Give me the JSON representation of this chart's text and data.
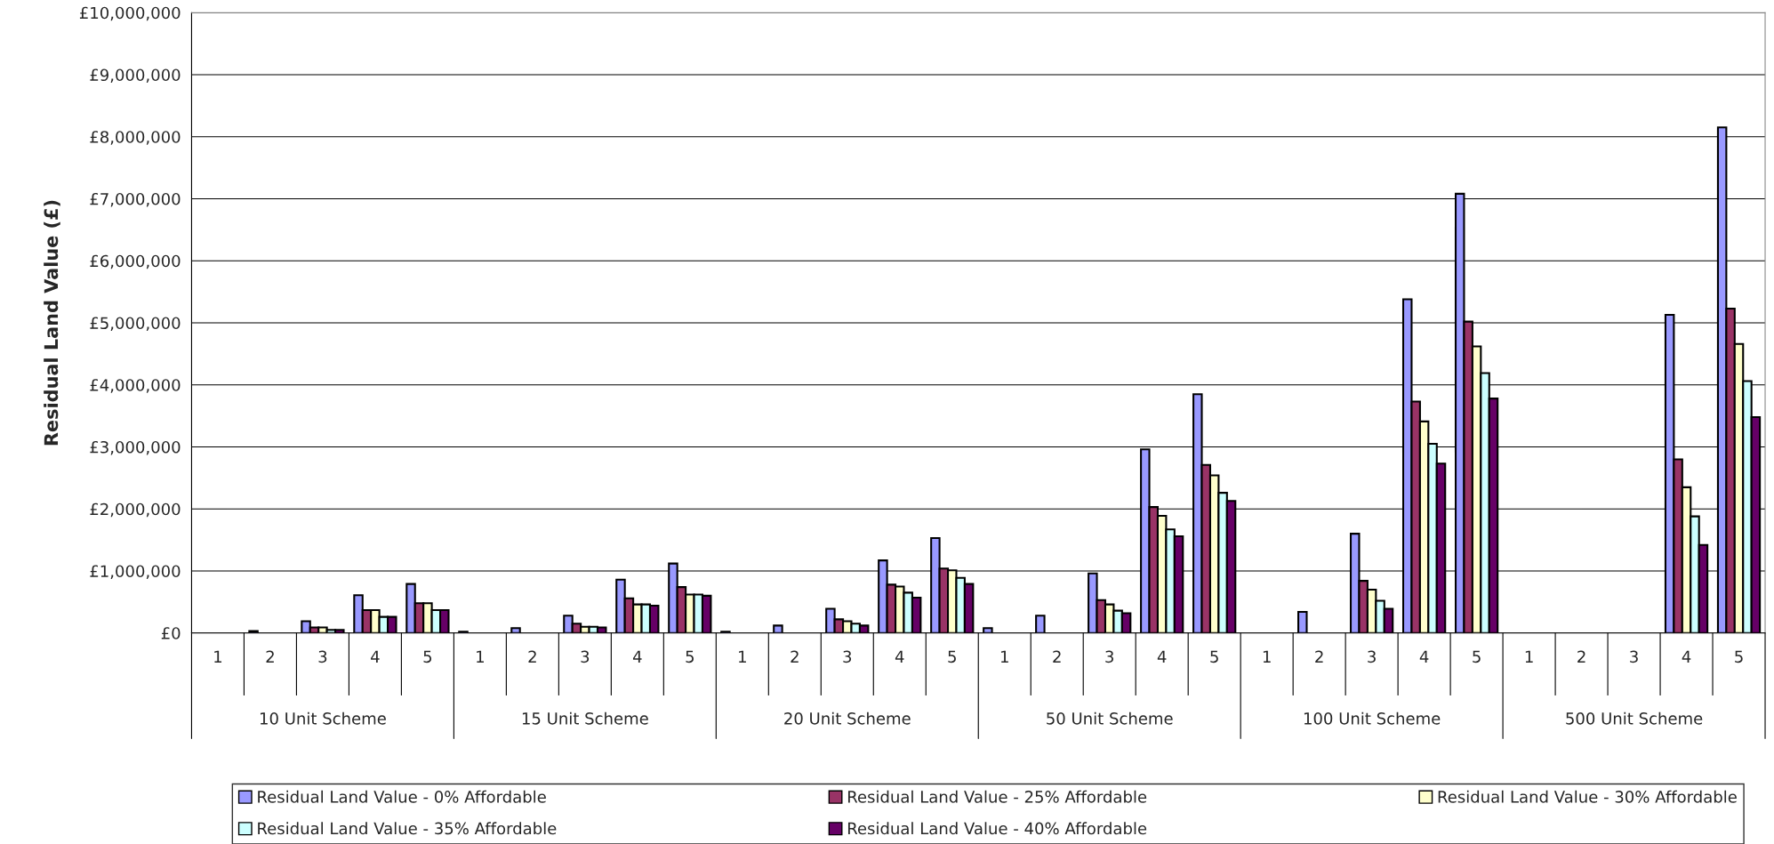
{
  "chart_data": {
    "type": "bar",
    "ylabel": "Residual Land Value (£)",
    "categories": [
      "1",
      "2",
      "3",
      "4",
      "5",
      "1",
      "2",
      "3",
      "4",
      "5",
      "1",
      "2",
      "3",
      "4",
      "5",
      "1",
      "2",
      "3",
      "4",
      "5",
      "1",
      "2",
      "3",
      "4",
      "5",
      "1",
      "2",
      "3",
      "4",
      "5"
    ],
    "annotations": [
      "10 Unit Scheme",
      "15 Unit Scheme",
      "20 Unit Scheme",
      "50 Unit Scheme",
      "100 Unit Scheme",
      "500 Unit Scheme"
    ],
    "series": [
      {
        "name": "Residual Land Value - 0% Affordable",
        "color": "#9999ff",
        "values": [
          null,
          30000,
          190000,
          610000,
          790000,
          20000,
          80000,
          280000,
          860000,
          1120000,
          20000,
          120000,
          390000,
          1170000,
          1530000,
          80000,
          280000,
          960000,
          2960000,
          3850000,
          null,
          340000,
          1600000,
          5380000,
          7080000,
          null,
          null,
          null,
          5130000,
          8150000
        ]
      },
      {
        "name": "Residual Land Value - 25% Affordable",
        "color": "#993366",
        "values": [
          null,
          null,
          90000,
          370000,
          480000,
          null,
          null,
          150000,
          560000,
          740000,
          null,
          null,
          220000,
          780000,
          1040000,
          null,
          null,
          530000,
          2030000,
          2710000,
          null,
          null,
          840000,
          3730000,
          5020000,
          null,
          null,
          null,
          2800000,
          5230000
        ]
      },
      {
        "name": "Residual Land Value - 30% Affordable",
        "color": "#ffffcc",
        "values": [
          null,
          null,
          90000,
          370000,
          480000,
          null,
          null,
          100000,
          460000,
          620000,
          null,
          null,
          190000,
          750000,
          1010000,
          null,
          null,
          460000,
          1890000,
          2540000,
          null,
          null,
          700000,
          3410000,
          4620000,
          null,
          null,
          null,
          2350000,
          4660000
        ]
      },
      {
        "name": "Residual Land Value - 35% Affordable",
        "color": "#ccffff",
        "values": [
          null,
          null,
          50000,
          260000,
          370000,
          null,
          null,
          100000,
          460000,
          620000,
          null,
          null,
          150000,
          650000,
          890000,
          null,
          null,
          360000,
          1670000,
          2260000,
          null,
          null,
          520000,
          3050000,
          4190000,
          null,
          null,
          null,
          1880000,
          4060000
        ]
      },
      {
        "name": "Residual Land Value - 40% Affordable",
        "color": "#660066",
        "values": [
          null,
          null,
          50000,
          260000,
          370000,
          null,
          null,
          90000,
          440000,
          600000,
          null,
          null,
          120000,
          570000,
          790000,
          null,
          null,
          320000,
          1560000,
          2130000,
          null,
          null,
          390000,
          2730000,
          3780000,
          null,
          null,
          null,
          1420000,
          3480000
        ]
      }
    ],
    "ylim": [
      0,
      10000000
    ],
    "yticks": [
      {
        "value": 0,
        "label": "£0"
      },
      {
        "value": 1000000,
        "label": "£1,000,000"
      },
      {
        "value": 2000000,
        "label": "£2,000,000"
      },
      {
        "value": 3000000,
        "label": "£3,000,000"
      },
      {
        "value": 4000000,
        "label": "£4,000,000"
      },
      {
        "value": 5000000,
        "label": "£5,000,000"
      },
      {
        "value": 6000000,
        "label": "£6,000,000"
      },
      {
        "value": 7000000,
        "label": "£7,000,000"
      },
      {
        "value": 8000000,
        "label": "£8,000,000"
      },
      {
        "value": 9000000,
        "label": "£9,000,000"
      },
      {
        "value": 10000000,
        "label": "£10,000,000"
      }
    ],
    "grid": "y",
    "legend": "bottom"
  }
}
